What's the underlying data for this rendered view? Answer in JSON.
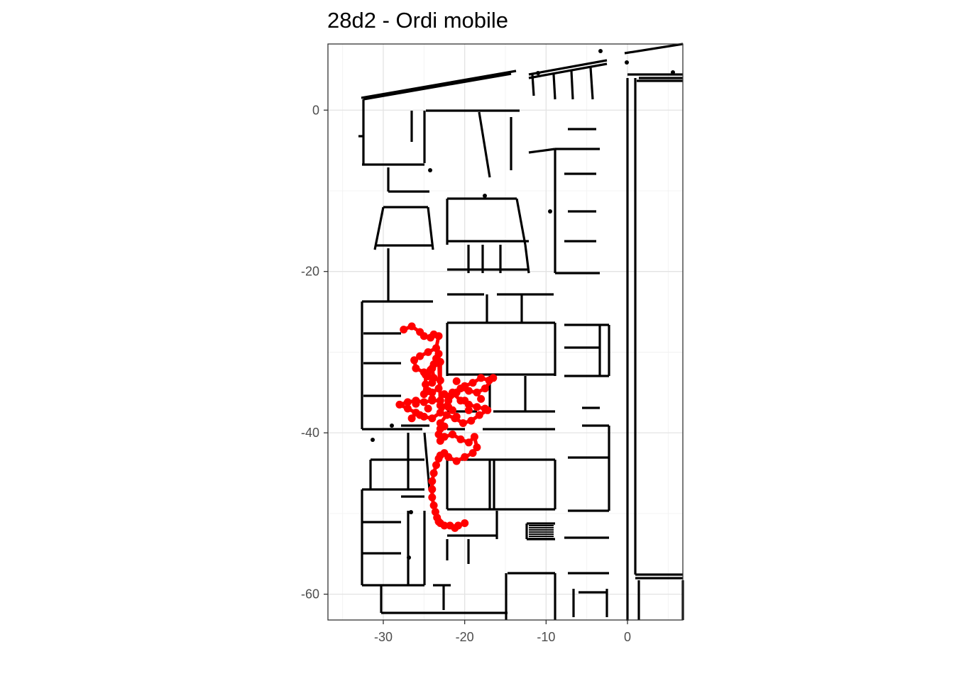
{
  "chart_data": {
    "type": "scatter",
    "title": "28d2 - Ordi mobile",
    "xlabel": "",
    "ylabel": "",
    "xlim": [
      -36.8,
      6.8
    ],
    "ylim": [
      -63.2,
      8.2
    ],
    "x_ticks": [
      -30,
      -20,
      -10,
      0
    ],
    "x_tick_labels": [
      "-30",
      "-20",
      "-10",
      "0"
    ],
    "y_ticks": [
      0,
      -20,
      -40,
      -60
    ],
    "y_tick_labels": [
      "0",
      "-20",
      "-40",
      "-60"
    ],
    "grid": true,
    "legend": "none",
    "colors": {
      "points": "#ff0000",
      "walls": "#000000",
      "panel_border": "#333333",
      "grid": "#ebebeb"
    },
    "series": [
      {
        "kind": "points",
        "x": [
          -27.5,
          -26.5,
          -25.5,
          -25.0,
          -24.2,
          -23.8,
          -23.2,
          -23.5,
          -24.5,
          -25.5,
          -26.2,
          -26.0,
          -25.0,
          -24.5,
          -23.8,
          -24.0,
          -23.0,
          -23.0,
          -23.2,
          -24.0,
          -25.0,
          -24.8,
          -24.8,
          -24.2,
          -23.8,
          -23.5,
          -23.2,
          -23.0,
          -24.0,
          -25.0,
          -26.0,
          -27.0,
          -28.0,
          -27.0,
          -26.0,
          -25.0,
          -24.0,
          -23.0,
          -22.0,
          -21.0,
          -20.0,
          -19.0,
          -18.0,
          -17.0,
          -16.5,
          -17.5,
          -18.5,
          -19.5,
          -20.5,
          -21.5,
          -20.5,
          -19.5,
          -18.5,
          -17.5,
          -17.2,
          -18.2,
          -19.2,
          -20.2,
          -21.2,
          -22.2,
          -23.0,
          -23.0,
          -23.2,
          -22.5,
          -21.5,
          -20.5,
          -19.5,
          -18.8,
          -18.5,
          -19.0,
          -20.0,
          -21.0,
          -22.0,
          -22.5,
          -23.0,
          -23.2,
          -23.5,
          -23.8,
          -24.0,
          -24.0,
          -24.0,
          -23.8,
          -23.6,
          -23.4,
          -23.2,
          -23.0,
          -22.5,
          -21.8,
          -21.2,
          -20.8,
          -20.0,
          -22.0,
          -24.0,
          -26.0,
          -22.0,
          -19.5,
          -21.0,
          -25.5,
          -22.5,
          -24.5,
          -21.5,
          -20.0,
          -18.0,
          -23.0,
          -26.5,
          -24.0,
          -22.5,
          -23.0,
          -24.5,
          -21.0
        ],
        "y": [
          -27.2,
          -26.8,
          -27.5,
          -28.0,
          -28.2,
          -27.8,
          -28.0,
          -29.5,
          -30.0,
          -30.5,
          -31.0,
          -32.0,
          -32.5,
          -33.0,
          -33.2,
          -32.0,
          -31.2,
          -33.5,
          -34.5,
          -35.0,
          -35.2,
          -34.0,
          -32.8,
          -32.2,
          -31.5,
          -30.8,
          -30.2,
          -36.0,
          -36.0,
          -36.2,
          -36.0,
          -36.2,
          -36.5,
          -37.0,
          -37.5,
          -38.0,
          -38.2,
          -37.5,
          -36.0,
          -35.0,
          -34.2,
          -33.8,
          -33.2,
          -33.5,
          -33.2,
          -34.5,
          -35.0,
          -34.8,
          -34.5,
          -35.0,
          -36.0,
          -36.5,
          -36.8,
          -37.0,
          -37.2,
          -37.8,
          -38.5,
          -38.8,
          -38.2,
          -37.8,
          -38.8,
          -39.5,
          -40.2,
          -40.5,
          -40.2,
          -40.8,
          -41.2,
          -40.5,
          -41.8,
          -42.5,
          -43.0,
          -43.5,
          -43.0,
          -42.5,
          -42.8,
          -43.2,
          -44.0,
          -45.0,
          -46.0,
          -47.0,
          -48.0,
          -49.0,
          -49.8,
          -50.5,
          -51.0,
          -51.2,
          -51.5,
          -51.5,
          -51.8,
          -51.5,
          -51.2,
          -35.5,
          -35.8,
          -36.4,
          -36.8,
          -37.2,
          -38.0,
          -37.8,
          -35.2,
          -34.8,
          -37.2,
          -36.0,
          -35.8,
          -36.6,
          -38.2,
          -33.8,
          -39.2,
          -41.0,
          -37.0,
          -33.6
        ]
      }
    ]
  }
}
